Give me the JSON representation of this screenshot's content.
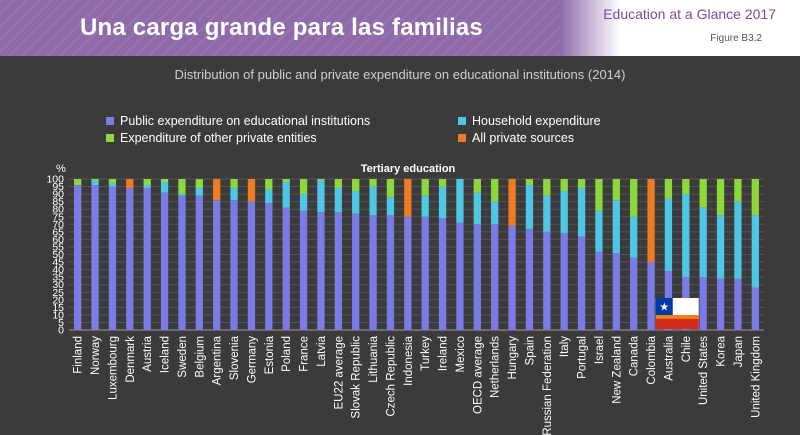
{
  "header": {
    "title": "Una carga grande para las familias",
    "publication": "Education at a Glance 2017",
    "figure_ref": "Figure B3.2"
  },
  "chart_title": "Distribution of public and private expenditure on educational institutions (2014)",
  "colors": {
    "public": "#7b7be6",
    "household": "#4ec6e6",
    "other": "#8fd63c",
    "all_private": "#f07b24"
  },
  "chart_data": {
    "type": "bar",
    "stacked": true,
    "title": "Tertiary education",
    "ylabel": "%",
    "ylim": [
      0,
      100
    ],
    "yticks": [
      0,
      5,
      10,
      15,
      20,
      25,
      30,
      35,
      40,
      45,
      50,
      55,
      60,
      65,
      70,
      75,
      80,
      85,
      90,
      95,
      100
    ],
    "legend": [
      {
        "key": "public",
        "label": "Public expenditure on educational institutions"
      },
      {
        "key": "household",
        "label": "Household expenditure"
      },
      {
        "key": "other",
        "label": "Expenditure of other private entities"
      },
      {
        "key": "all_private",
        "label": "All private sources"
      }
    ],
    "categories": [
      "Finland",
      "Norway",
      "Luxembourg",
      "Denmark",
      "Austria",
      "Iceland",
      "Sweden",
      "Belgium",
      "Argentina",
      "Slovenia",
      "Germany",
      "Estonia",
      "Poland",
      "France",
      "Latvia",
      "EU22 average",
      "Slovak Republic",
      "Lithuania",
      "Czech Republic",
      "Indonesia",
      "Turkey",
      "Ireland",
      "Mexico",
      "OECD average",
      "Netherlands",
      "Hungary",
      "Spain",
      "Russian Federation",
      "Italy",
      "Portugal",
      "Israel",
      "New Zealand",
      "Canada",
      "Colombia",
      "Australia",
      "Chile",
      "United States",
      "Korea",
      "Japan",
      "United Kingdom"
    ],
    "series": [
      {
        "name": "public",
        "values": [
          96,
          96,
          95,
          94,
          94,
          91,
          89,
          89,
          86,
          86,
          85,
          84,
          81,
          79,
          78,
          78,
          77,
          76,
          76,
          75,
          75,
          74,
          71,
          70,
          70,
          69,
          67,
          65,
          64,
          62,
          52,
          51,
          48,
          45,
          39,
          35,
          35,
          34,
          34,
          28
        ]
      },
      {
        "name": "household",
        "values": [
          0,
          3,
          2,
          0,
          2,
          7,
          1,
          5,
          0,
          8,
          0,
          9,
          17,
          11,
          21,
          16,
          15,
          19,
          12,
          0,
          14,
          21,
          29,
          21,
          15,
          0,
          29,
          24,
          28,
          32,
          27,
          35,
          27,
          0,
          48,
          55,
          46,
          42,
          51,
          48
        ]
      },
      {
        "name": "other",
        "values": [
          4,
          1,
          3,
          0,
          4,
          2,
          10,
          6,
          0,
          6,
          0,
          7,
          2,
          10,
          1,
          6,
          8,
          5,
          12,
          0,
          11,
          5,
          0,
          9,
          15,
          0,
          4,
          11,
          8,
          6,
          21,
          14,
          25,
          0,
          13,
          10,
          19,
          24,
          15,
          24
        ]
      },
      {
        "name": "all_private",
        "values": [
          0,
          0,
          0,
          6,
          0,
          0,
          0,
          0,
          14,
          0,
          15,
          0,
          0,
          0,
          0,
          0,
          0,
          0,
          0,
          25,
          0,
          0,
          0,
          0,
          0,
          31,
          0,
          0,
          0,
          0,
          0,
          0,
          0,
          55,
          0,
          0,
          0,
          0,
          0,
          0
        ]
      }
    ],
    "highlight_category": "Chile",
    "highlight_flag": "chile-flag"
  }
}
